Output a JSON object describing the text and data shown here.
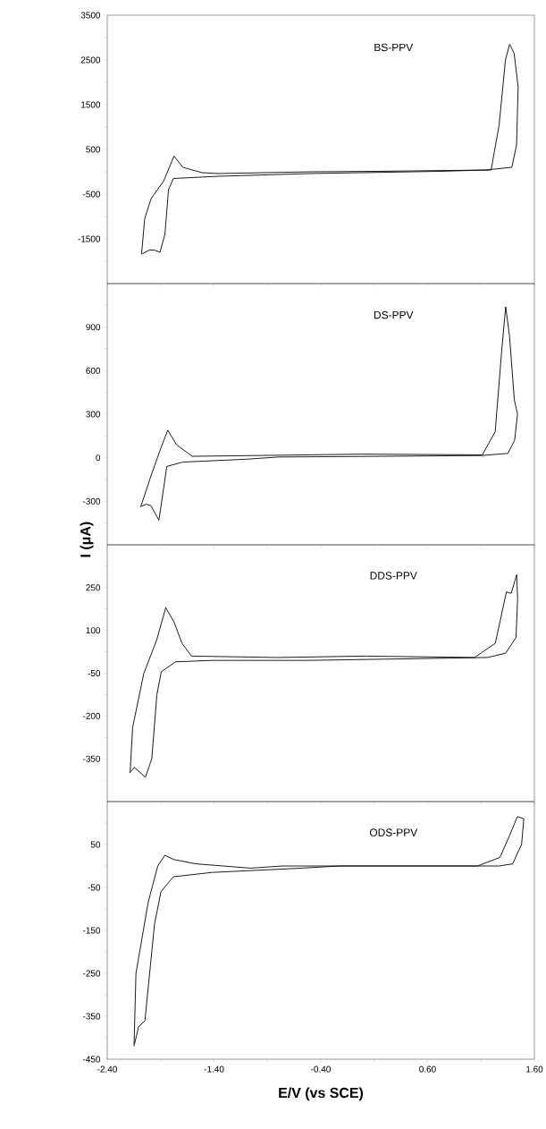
{
  "chart_data": [
    {
      "type": "line",
      "xlim": [
        -2.4,
        1.6
      ],
      "ylim": [
        -2500,
        3500
      ],
      "tick_labels": "y",
      "xticks": [
        {
          "value": -2.4,
          "label": null
        },
        {
          "value": -1.9,
          "label": null
        },
        {
          "value": -1.4,
          "label": null
        },
        {
          "value": -0.9,
          "label": null
        },
        {
          "value": -0.4,
          "label": null
        },
        {
          "value": 0.1,
          "label": null
        },
        {
          "value": 0.6,
          "label": null
        },
        {
          "value": 1.1,
          "label": null
        },
        {
          "value": 1.6,
          "label": null
        }
      ],
      "yticks": [
        {
          "value": -2000,
          "label": null
        },
        -1500,
        {
          "value": -1000,
          "label": null
        },
        -500,
        {
          "value": 0,
          "label": null
        },
        500,
        {
          "value": 1000,
          "label": null
        },
        1500,
        {
          "value": 2000,
          "label": null
        },
        2500,
        {
          "value": 3000,
          "label": null
        },
        3500
      ],
      "series": [
        {
          "name": "BS-PPV",
          "color": "#000000",
          "x": [
            -2.079,
            -2.049,
            -1.989,
            -1.87,
            -1.775,
            -1.692,
            -1.513,
            -1.364,
            -0.471,
            0.124,
            1.195,
            1.27,
            1.329,
            1.368,
            1.41,
            1.448,
            1.433,
            1.389,
            1.15,
            0.719,
            -0.5,
            -1.35,
            -1.78,
            -1.826,
            -1.86,
            -1.906,
            -1.96,
            -2.004,
            -2.07
          ],
          "values": [
            -1850,
            -1050,
            -600,
            -200,
            350,
            100,
            -20,
            -40,
            0,
            10,
            40,
            1050,
            2500,
            2850,
            2650,
            1900,
            600,
            100,
            40,
            10,
            -40,
            -100,
            -150,
            -400,
            -1400,
            -1800,
            -1750,
            -1750,
            -1830
          ]
        }
      ]
    },
    {
      "type": "line",
      "xlim": [
        -2.4,
        1.6
      ],
      "ylim": [
        -600,
        1200
      ],
      "tick_labels": "y",
      "xticks": [
        {
          "value": -2.4,
          "label": null
        },
        {
          "value": -1.9,
          "label": null
        },
        {
          "value": -1.4,
          "label": null
        },
        {
          "value": -0.9,
          "label": null
        },
        {
          "value": -0.4,
          "label": null
        },
        {
          "value": 0.1,
          "label": null
        },
        {
          "value": 0.6,
          "label": null
        },
        {
          "value": 1.1,
          "label": null
        },
        {
          "value": 1.6,
          "label": null
        }
      ],
      "yticks": [
        {
          "value": -450,
          "label": null
        },
        -300,
        {
          "value": -150,
          "label": null
        },
        0,
        {
          "value": 150,
          "label": null
        },
        300,
        {
          "value": 450,
          "label": null
        },
        600,
        {
          "value": 750,
          "label": null
        },
        900,
        {
          "value": 1050,
          "label": null
        }
      ],
      "ylabel": "I (μA)",
      "series": [
        {
          "name": "DS-PPV",
          "color": "#000000",
          "x": [
            -2.087,
            -1.979,
            -1.901,
            -1.833,
            -1.752,
            -1.603,
            -0.498,
            -0.021,
            1.113,
            1.233,
            1.293,
            1.331,
            1.367,
            1.412,
            1.442,
            1.415,
            1.352,
            1.1,
            -0.797,
            -1.096,
            -1.693,
            -1.842,
            -1.872,
            -1.916,
            -1.991,
            -2.036,
            -2.08
          ],
          "values": [
            -340,
            -100,
            60,
            190,
            90,
            10,
            20,
            25,
            20,
            180,
            730,
            1040,
            840,
            400,
            300,
            120,
            30,
            15,
            5,
            -10,
            -30,
            -60,
            -210,
            -430,
            -330,
            -320,
            -335
          ]
        }
      ]
    },
    {
      "type": "line",
      "xlim": [
        -2.4,
        1.6
      ],
      "ylim": [
        -500,
        400
      ],
      "tick_labels": "y",
      "xticks": [
        {
          "value": -2.4,
          "label": null
        },
        {
          "value": -1.9,
          "label": null
        },
        {
          "value": -1.4,
          "label": null
        },
        {
          "value": -0.9,
          "label": null
        },
        {
          "value": -0.4,
          "label": null
        },
        {
          "value": 0.1,
          "label": null
        },
        {
          "value": 0.6,
          "label": null
        },
        {
          "value": 1.1,
          "label": null
        },
        {
          "value": 1.6,
          "label": null
        }
      ],
      "yticks": [
        {
          "value": -425,
          "label": null
        },
        -350,
        {
          "value": -275,
          "label": null
        },
        -200,
        {
          "value": -125,
          "label": null
        },
        -50,
        {
          "value": 25,
          "label": null
        },
        100,
        {
          "value": 175,
          "label": null
        },
        250,
        {
          "value": 325,
          "label": null
        }
      ],
      "series": [
        {
          "name": "DDS-PPV",
          "color": "#000000",
          "x": [
            -2.186,
            -2.162,
            -2.057,
            -1.938,
            -1.852,
            -1.775,
            -1.7,
            -1.611,
            -0.807,
            0.013,
            1.04,
            1.234,
            1.338,
            1.383,
            1.434,
            1.443,
            1.428,
            1.33,
            1.159,
            -0.509,
            -1.402,
            -1.76,
            -1.894,
            -1.935,
            -1.983,
            -2.043,
            -2.147,
            -2.18
          ],
          "values": [
            -400,
            -240,
            -50,
            65,
            180,
            130,
            55,
            10,
            5,
            10,
            5,
            55,
            235,
            230,
            295,
            210,
            75,
            20,
            5,
            -5,
            -5,
            -10,
            -45,
            -125,
            -350,
            -415,
            -380,
            -395
          ]
        }
      ]
    },
    {
      "type": "line",
      "xlim": [
        -2.4,
        1.6
      ],
      "ylim": [
        -450,
        150
      ],
      "xlabel": "E/V (vs SCE)",
      "xticks": [
        {
          "value": -2.4,
          "label": "-2.40"
        },
        {
          "value": -1.9,
          "label": null
        },
        {
          "value": -1.4,
          "label": "-1.40"
        },
        {
          "value": -0.9,
          "label": null
        },
        {
          "value": -0.4,
          "label": "-0.40"
        },
        {
          "value": 0.1,
          "label": null
        },
        {
          "value": 0.6,
          "label": "0.60"
        },
        {
          "value": 1.1,
          "label": null
        },
        {
          "value": 1.6,
          "label": "1.60"
        }
      ],
      "yticks": [
        -450,
        {
          "value": -400,
          "label": null
        },
        -350,
        {
          "value": -300,
          "label": null
        },
        -250,
        {
          "value": -200,
          "label": null
        },
        -150,
        {
          "value": -100,
          "label": null
        },
        -50,
        {
          "value": 0,
          "label": null
        },
        50,
        {
          "value": 100,
          "label": null
        }
      ],
      "series": [
        {
          "name": "ODS-PPV",
          "color": "#000000",
          "x": [
            -2.149,
            -2.131,
            -2.017,
            -1.927,
            -1.861,
            -1.777,
            -1.568,
            -1.059,
            -0.759,
            0.004,
            1.067,
            1.277,
            1.366,
            1.441,
            1.501,
            1.48,
            1.396,
            1.27,
            -0.22,
            -0.58,
            -1.418,
            -1.78,
            -1.897,
            -1.957,
            -2.047,
            -2.107,
            -2.145
          ],
          "values": [
            -420,
            -250,
            -85,
            0,
            25,
            15,
            5,
            -5,
            0,
            0,
            0,
            20,
            70,
            115,
            110,
            50,
            5,
            0,
            0,
            -5,
            -15,
            -25,
            -60,
            -135,
            -360,
            -375,
            -415
          ]
        }
      ]
    }
  ]
}
